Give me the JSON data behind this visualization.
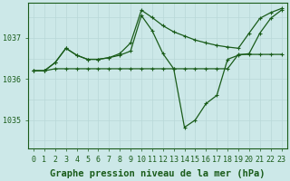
{
  "bg_color": "#cce8e8",
  "grid_color_v": "#b8d8d8",
  "grid_color_h": "#b8d8d8",
  "line_color": "#1a5c1a",
  "xlabel": "Graphe pression niveau de la mer (hPa)",
  "xlabel_fontsize": 7.5,
  "tick_fontsize": 6.0,
  "yticks": [
    1035,
    1036,
    1037
  ],
  "ylim": [
    1034.3,
    1037.85
  ],
  "xlim": [
    -0.5,
    23.5
  ],
  "xticks": [
    0,
    1,
    2,
    3,
    4,
    5,
    6,
    7,
    8,
    9,
    10,
    11,
    12,
    13,
    14,
    15,
    16,
    17,
    18,
    19,
    20,
    21,
    22,
    23
  ],
  "grid_y_vals": [
    1034.5,
    1035.0,
    1035.5,
    1036.0,
    1036.5,
    1037.0,
    1037.5
  ],
  "series1_x": [
    0,
    1,
    2,
    3,
    4,
    5,
    6,
    7,
    8,
    9,
    10,
    11,
    12,
    13,
    14,
    15,
    16,
    17,
    18,
    19,
    20,
    21,
    22,
    23
  ],
  "series1_y": [
    1036.2,
    1036.2,
    1036.25,
    1036.25,
    1036.25,
    1036.25,
    1036.25,
    1036.25,
    1036.25,
    1036.25,
    1036.25,
    1036.25,
    1036.25,
    1036.25,
    1036.25,
    1036.25,
    1036.25,
    1036.25,
    1036.25,
    1036.6,
    1036.6,
    1036.6,
    1036.6,
    1036.6
  ],
  "series2_x": [
    0,
    1,
    2,
    3,
    4,
    5,
    6,
    7,
    8,
    9,
    10,
    11,
    12,
    13,
    14,
    15,
    16,
    17,
    18,
    19,
    20,
    21,
    22,
    23
  ],
  "series2_y": [
    1036.2,
    1036.2,
    1036.4,
    1036.75,
    1036.58,
    1036.48,
    1036.48,
    1036.52,
    1036.58,
    1036.68,
    1037.55,
    1037.18,
    1036.62,
    1036.25,
    1034.82,
    1035.0,
    1035.4,
    1035.6,
    1036.48,
    1036.58,
    1036.62,
    1037.12,
    1037.48,
    1037.68
  ],
  "series3_x": [
    0,
    1,
    2,
    3,
    4,
    5,
    6,
    7,
    8,
    9,
    10,
    11,
    12,
    13,
    14,
    15,
    16,
    17,
    18,
    19,
    20,
    21,
    22,
    23
  ],
  "series3_y": [
    1036.2,
    1036.2,
    1036.4,
    1036.75,
    1036.58,
    1036.48,
    1036.48,
    1036.52,
    1036.62,
    1036.88,
    1037.68,
    1037.5,
    1037.3,
    1037.15,
    1037.05,
    1036.95,
    1036.88,
    1036.82,
    1036.78,
    1036.75,
    1037.12,
    1037.48,
    1037.62,
    1037.72
  ]
}
